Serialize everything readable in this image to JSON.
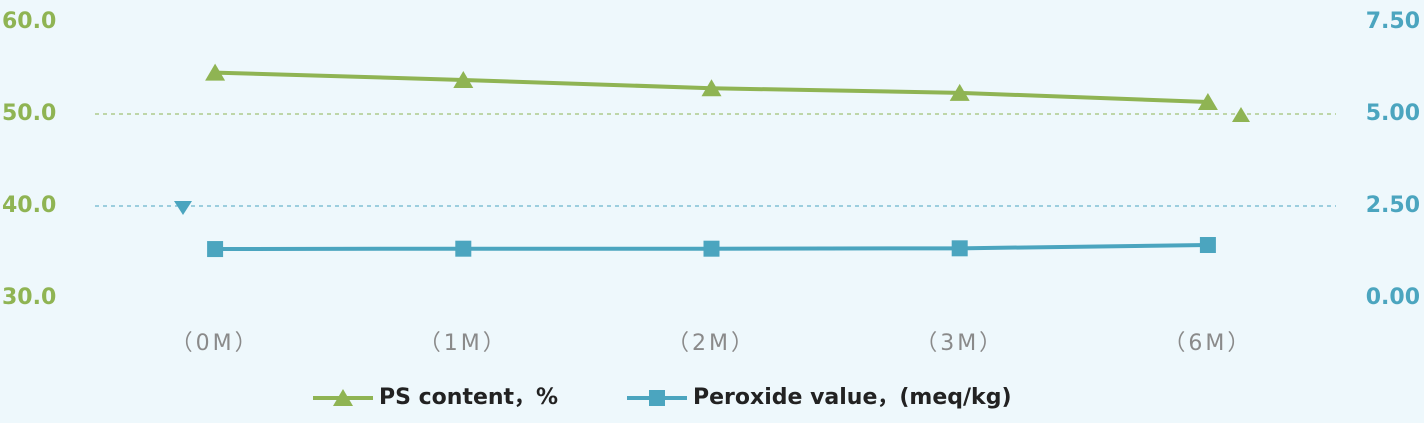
{
  "chart_data": {
    "type": "line",
    "categories": [
      "（0M）",
      "（1M）",
      "（2M）",
      "（3M）",
      "（6M）"
    ],
    "series": [
      {
        "name": "PS content，%",
        "color": "#8fb453",
        "marker": "triangle",
        "values": [
          54.5,
          53.7,
          52.8,
          52.3,
          51.3
        ]
      },
      {
        "name": "Peroxide value，(meq/kg)",
        "color": "#4ba5bf",
        "marker": "square",
        "axis": "y2",
        "values": [
          1.33,
          1.34,
          1.34,
          1.35,
          1.44
        ]
      }
    ],
    "ylim": [
      30,
      60
    ],
    "yticks": [
      {
        "value": 30,
        "label": "30.0"
      },
      {
        "value": 40,
        "label": "40.0"
      },
      {
        "value": 50,
        "label": "50.0"
      },
      {
        "value": 60,
        "label": "60.0"
      }
    ],
    "y2lim": [
      0,
      7.5
    ],
    "y2ticks": [
      {
        "value": 0,
        "label": "0.00"
      },
      {
        "value": 2.5,
        "label": "2.50"
      },
      {
        "value": 5,
        "label": "5.00"
      },
      {
        "value": 7.5,
        "label": "7.50"
      }
    ],
    "grid": true,
    "legend": "bottom"
  }
}
